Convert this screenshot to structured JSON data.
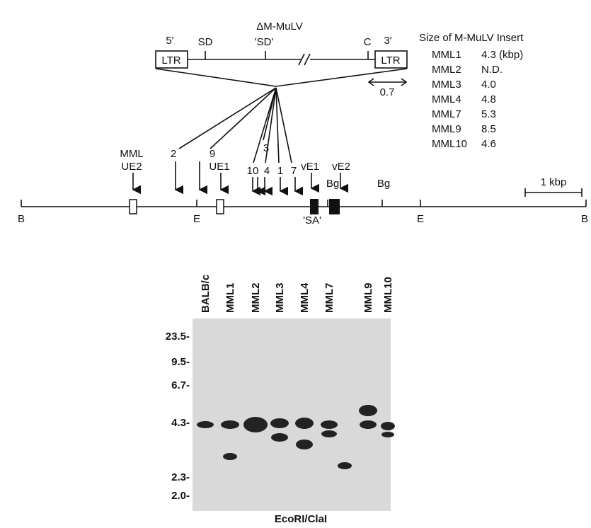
{
  "provirus": {
    "title": "ΔM-MuLV",
    "labels": [
      "5′",
      "3′",
      "SD",
      "'SD'",
      "C"
    ],
    "ltr": [
      "LTR",
      "LTR"
    ],
    "scale": "0.7"
  },
  "insert_table": {
    "title": "Size of M-MuLV Insert",
    "rows": [
      [
        "MML1",
        "4.3 (kbp)"
      ],
      [
        "MML2",
        "N.D."
      ],
      [
        "MML3",
        "4.0"
      ],
      [
        "MML4",
        "4.8"
      ],
      [
        "MML7",
        "5.3"
      ],
      [
        "MML9",
        "8.5"
      ],
      [
        "MML10",
        "4.6"
      ]
    ]
  },
  "map": {
    "integration_labels": [
      "MML",
      "2",
      "9",
      "3",
      "10",
      "4",
      "1",
      "7"
    ],
    "elements": [
      "UE2",
      "UE1",
      "vE1",
      "vE2"
    ],
    "sites": [
      "Bg",
      "Bg",
      "B",
      "E",
      "E",
      "B"
    ],
    "sa": "'SA'",
    "scale": "1 kbp"
  },
  "gel": {
    "lanes": [
      "BALB/c",
      "MML1",
      "MML2",
      "MML3",
      "MML4",
      "MML7",
      "MML9",
      "MML10"
    ],
    "markers": [
      "23.5-",
      "9.5-",
      "6.7-",
      "4.3-",
      "2.3-",
      "2.0-"
    ],
    "caption": "EcoRI/ClaI"
  }
}
